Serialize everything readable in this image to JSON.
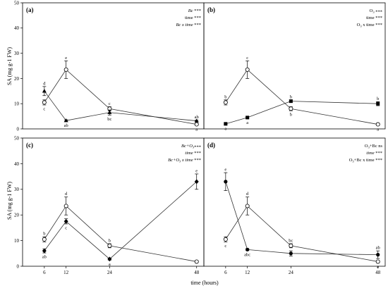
{
  "figure": {
    "xlabel": "time (hours)",
    "ylabel_top": "SA (mg g-1 FW)",
    "ylabel_bottom": "SA (mg g-1 FW)"
  },
  "chart_data": [
    {
      "type": "line",
      "panel_label": "(a)",
      "x": [
        6,
        12,
        24,
        48
      ],
      "xlim": [
        0,
        50
      ],
      "ylim": [
        0,
        50
      ],
      "yticks": [
        0,
        10,
        20,
        30,
        40,
        50
      ],
      "stats": [
        {
          "term": "Bc",
          "sig": " ***",
          "italic": true
        },
        {
          "term": "time",
          "sig": " ***",
          "italic": false
        },
        {
          "term": "Bc x time",
          "sig": " ***",
          "italic": true
        }
      ],
      "series": [
        {
          "marker": "circle-open",
          "values": [
            10.5,
            23.5,
            8,
            1.8
          ],
          "errors": [
            1,
            3.5,
            0.8,
            0.4
          ],
          "letters": [
            "c",
            "e",
            "c",
            "a"
          ],
          "letter_pos": [
            "below",
            "above",
            "above",
            "below"
          ]
        },
        {
          "marker": "triangle-filled",
          "values": [
            15,
            3.3,
            6.5,
            3.2
          ],
          "errors": [
            1.8,
            0.3,
            1,
            0.3
          ],
          "letters": [
            "d",
            "ab",
            "bc",
            "ab"
          ],
          "letter_pos": [
            "above",
            "below",
            "below",
            "above"
          ]
        }
      ]
    },
    {
      "type": "line",
      "panel_label": "(b)",
      "x": [
        6,
        12,
        24,
        48
      ],
      "xlim": [
        0,
        50
      ],
      "ylim": [
        0,
        50
      ],
      "yticks": [
        0,
        10,
        20,
        30,
        40,
        50
      ],
      "stats": [
        {
          "term": "O3",
          "sig": " ***",
          "italic": false
        },
        {
          "term": "time",
          "sig": " ***",
          "italic": false
        },
        {
          "term": "O3 x time",
          "sig": " ***",
          "italic": false
        }
      ],
      "series": [
        {
          "marker": "circle-open",
          "values": [
            10.5,
            23.5,
            8,
            1.8
          ],
          "errors": [
            1,
            3.5,
            0.8,
            0.4
          ],
          "letters": [
            "b",
            "c",
            "b",
            "a"
          ],
          "letter_pos": [
            "above",
            "above",
            "below",
            "below"
          ]
        },
        {
          "marker": "square-filled",
          "values": [
            2,
            4.5,
            11,
            10
          ],
          "errors": [
            0.3,
            0.4,
            0.5,
            0.8
          ],
          "letters": [
            "a",
            "a",
            "b",
            "b"
          ],
          "letter_pos": [
            "below",
            "below",
            "above",
            "above"
          ]
        }
      ]
    },
    {
      "type": "line",
      "panel_label": "(c)",
      "x": [
        6,
        12,
        24,
        48
      ],
      "xlim": [
        0,
        50
      ],
      "ylim": [
        0,
        50
      ],
      "yticks": [
        0,
        10,
        20,
        30,
        40,
        50
      ],
      "stats": [
        {
          "term": "Bc+O3",
          "sig": "***",
          "italic": true
        },
        {
          "term": "time",
          "sig": " ***",
          "italic": true
        },
        {
          "term": "Bc+O3 x time",
          "sig": " ***",
          "italic": true
        }
      ],
      "series": [
        {
          "marker": "circle-open",
          "values": [
            10.5,
            23.5,
            8,
            1.8
          ],
          "errors": [
            1,
            3.5,
            0.8,
            0.4
          ],
          "letters": [
            "b",
            "d",
            "b",
            ""
          ],
          "letter_pos": [
            "above",
            "above",
            "above",
            "above"
          ]
        },
        {
          "marker": "diamond-filled",
          "values": [
            6,
            17.5,
            2.8,
            33
          ],
          "errors": [
            0.8,
            1,
            0.4,
            3
          ],
          "letters": [
            "ab",
            "c",
            "a",
            "e"
          ],
          "letter_pos": [
            "below",
            "below",
            "below",
            "above"
          ]
        }
      ]
    },
    {
      "type": "line",
      "panel_label": "(d)",
      "x": [
        6,
        12,
        24,
        48
      ],
      "xlim": [
        0,
        50
      ],
      "ylim": [
        0,
        50
      ],
      "yticks": [
        0,
        10,
        20,
        30,
        40,
        50
      ],
      "stats": [
        {
          "term": "O3+Bc",
          "sig": " ns",
          "italic": false
        },
        {
          "term": "time",
          "sig": " ***",
          "italic": true
        },
        {
          "term": "O3+Bc x time",
          "sig": " ***",
          "italic": false
        }
      ],
      "series": [
        {
          "marker": "circle-open",
          "values": [
            10.5,
            23.5,
            8,
            1.8
          ],
          "errors": [
            1,
            3.5,
            0.8,
            0.4
          ],
          "letters": [
            "c",
            "d",
            "bc",
            "a"
          ],
          "letter_pos": [
            "below",
            "above",
            "above",
            "below"
          ]
        },
        {
          "marker": "circle-filled",
          "values": [
            33,
            6.5,
            5,
            4.5
          ],
          "errors": [
            3.5,
            0.4,
            1,
            1.5
          ],
          "letters": [
            "e",
            "abc",
            "",
            "ab"
          ],
          "letter_pos": [
            "above",
            "below",
            "below",
            "above"
          ]
        }
      ]
    }
  ]
}
